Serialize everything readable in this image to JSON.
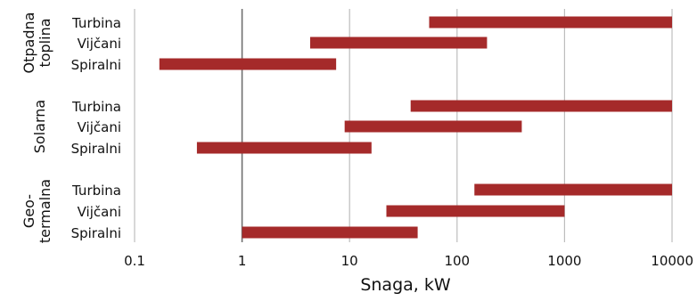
{
  "chart_data": {
    "type": "bar",
    "orientation": "horizontal-range",
    "xscale": "log",
    "xlim": [
      0.1,
      10000
    ],
    "xticks": [
      "0.1",
      "1",
      "10",
      "100",
      "1000",
      "10000"
    ],
    "xlabel": "Snaga, kW",
    "grid": true,
    "groups": [
      {
        "name": "Otpadna toplina",
        "label_lines": [
          "Otpadna",
          "toplina"
        ],
        "bars": [
          {
            "label": "Turbina",
            "start": 55,
            "end": 10000
          },
          {
            "label": "Vijčani",
            "start": 4.3,
            "end": 190
          },
          {
            "label": "Spiralni",
            "start": 0.17,
            "end": 7.5
          }
        ]
      },
      {
        "name": "Solarna",
        "label_lines": [
          "Solarna"
        ],
        "bars": [
          {
            "label": "Turbina",
            "start": 37,
            "end": 10000
          },
          {
            "label": "Vijčani",
            "start": 9,
            "end": 400
          },
          {
            "label": "Spiralni",
            "start": 0.38,
            "end": 16
          }
        ]
      },
      {
        "name": "Geo-termalna",
        "label_lines": [
          "Geo-",
          "termalna"
        ],
        "bars": [
          {
            "label": "Turbina",
            "start": 145,
            "end": 10000
          },
          {
            "label": "Vijčani",
            "start": 22,
            "end": 1000
          },
          {
            "label": "Spiralni",
            "start": 1,
            "end": 43
          }
        ]
      }
    ],
    "bar_color": "#a52a2a"
  }
}
